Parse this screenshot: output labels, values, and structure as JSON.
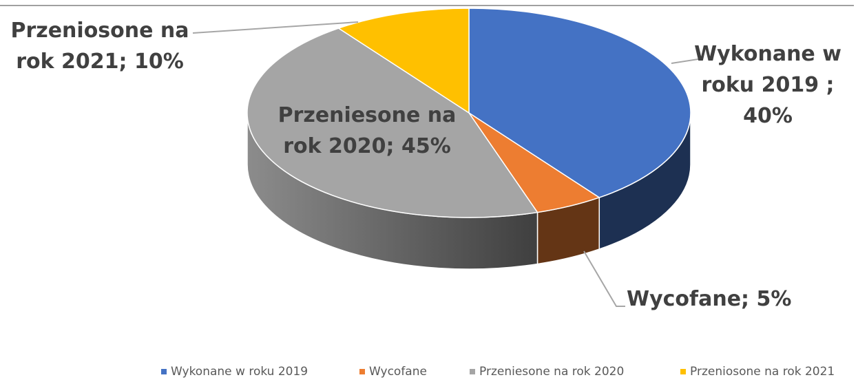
{
  "chart_data": {
    "type": "pie",
    "categories": [
      "Wykonane w roku 2019",
      "Wycofane",
      "Przeniesone na rok 2020",
      "Przeniosone na rok 2021"
    ],
    "values": [
      40,
      5,
      45,
      10
    ],
    "value_labels": [
      "Wykonane w roku 2019 ; 40%",
      "Wycofane; 5%",
      "Przeniesone na rok 2020; 45%",
      "Przeniosone na rok 2021; 10%"
    ],
    "colors": [
      "#4472c4",
      "#ed7d31",
      "#a5a5a5",
      "#ffc000"
    ],
    "legend": "bottom"
  }
}
